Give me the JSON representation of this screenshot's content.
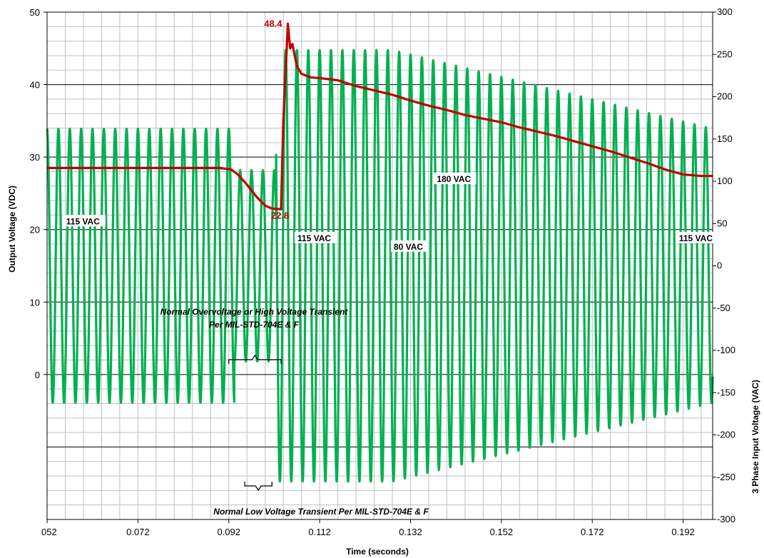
{
  "chart_data": {
    "type": "line",
    "xlabel": "Time (seconds)",
    "ylabel_left": "Output Voltage (VDC)",
    "ylabel_right": "3 Phase Input Voltage (VAC)",
    "xlim": [
      0.052,
      0.1985
    ],
    "x_ticks": [
      "052",
      "0.072",
      "0.092",
      "0.112",
      "0.132",
      "0.152",
      "0.172",
      "0.192"
    ],
    "x_tick_values": [
      0.052,
      0.072,
      0.092,
      0.112,
      0.132,
      0.152,
      0.172,
      0.192
    ],
    "ylim_left": [
      -20,
      50
    ],
    "y_left_ticks": [
      "0",
      "10",
      "20",
      "30",
      "40",
      "50"
    ],
    "y_left_tick_values": [
      0,
      10,
      20,
      30,
      40,
      50
    ],
    "ylim_right": [
      -300,
      300
    ],
    "y_right_ticks": [
      "-300",
      "-250",
      "-200",
      "-150",
      "-100",
      "-50",
      "0",
      "50",
      "100",
      "150",
      "200",
      "250",
      "300"
    ],
    "y_right_tick_values": [
      -300,
      -250,
      -200,
      -150,
      -100,
      -50,
      0,
      50,
      100,
      150,
      200,
      250,
      300
    ],
    "grid": true,
    "colors": {
      "output": "#c00000",
      "input": "#00b050",
      "grid_major": "#000000",
      "grid_minor": "#bfbfbf"
    },
    "series": [
      {
        "axis": "left",
        "color": "#c00000",
        "x": [
          0.052,
          0.06,
          0.07,
          0.08,
          0.09,
          0.0925,
          0.094,
          0.096,
          0.098,
          0.1,
          0.1015,
          0.1035,
          0.104,
          0.1046,
          0.105,
          0.1055,
          0.106,
          0.107,
          0.108,
          0.11,
          0.112,
          0.116,
          0.12,
          0.124,
          0.128,
          0.132,
          0.136,
          0.14,
          0.144,
          0.148,
          0.152,
          0.156,
          0.16,
          0.164,
          0.168,
          0.172,
          0.176,
          0.18,
          0.184,
          0.188,
          0.192,
          0.196,
          0.1985
        ],
        "y": [
          28.5,
          28.5,
          28.5,
          28.5,
          28.5,
          28.3,
          27.6,
          26.2,
          24.6,
          23.3,
          22.9,
          22.8,
          35.0,
          43.0,
          48.4,
          45.0,
          45.6,
          42.5,
          41.5,
          41.0,
          40.9,
          40.6,
          39.8,
          39.2,
          38.6,
          37.8,
          37.1,
          36.5,
          35.8,
          35.3,
          34.8,
          34.1,
          33.5,
          32.9,
          32.2,
          31.5,
          30.8,
          30.0,
          29.2,
          28.3,
          27.6,
          27.4,
          27.4
        ]
      },
      {
        "axis": "right",
        "color": "#00b050",
        "type": "sine",
        "frequency_hz": 400,
        "segments": [
          {
            "x": [
              0.052,
              0.0932
            ],
            "amplitude_vac": 162
          },
          {
            "x": [
              0.0932,
              0.1024
            ],
            "amplitude_vac": 113
          },
          {
            "x": [
              0.1024,
              0.128
            ],
            "amplitude_vac": 255
          },
          {
            "x": [
              0.128,
              0.1985
            ],
            "amplitude_vac": 255,
            "end_amplitude_vac": 162
          }
        ]
      }
    ],
    "data_labels": [
      {
        "text": "48.4",
        "x": 0.105,
        "y": 48.4,
        "axis": "left"
      },
      {
        "text": "22.8",
        "x": 0.1035,
        "y": 22.8,
        "axis": "left"
      }
    ],
    "annotations": {
      "overvoltage_line1": "Normal Overvoltage or High Voltage Transient",
      "overvoltage_line2": "Per MIL-STD-704E & F",
      "low_voltage": "Normal Low Voltage Transient Per MIL-STD-704E & F"
    },
    "region_labels": [
      {
        "text": "115 VAC",
        "x": 0.0562,
        "y": 50
      },
      {
        "text": "115 VAC",
        "x": 0.1071,
        "y": 30
      },
      {
        "text": "80 VAC",
        "x": 0.1283,
        "y": 20
      },
      {
        "text": "180 VAC",
        "x": 0.1378,
        "y": 100
      },
      {
        "text": "115 VAC",
        "x": 0.1911,
        "y": 30
      }
    ]
  }
}
